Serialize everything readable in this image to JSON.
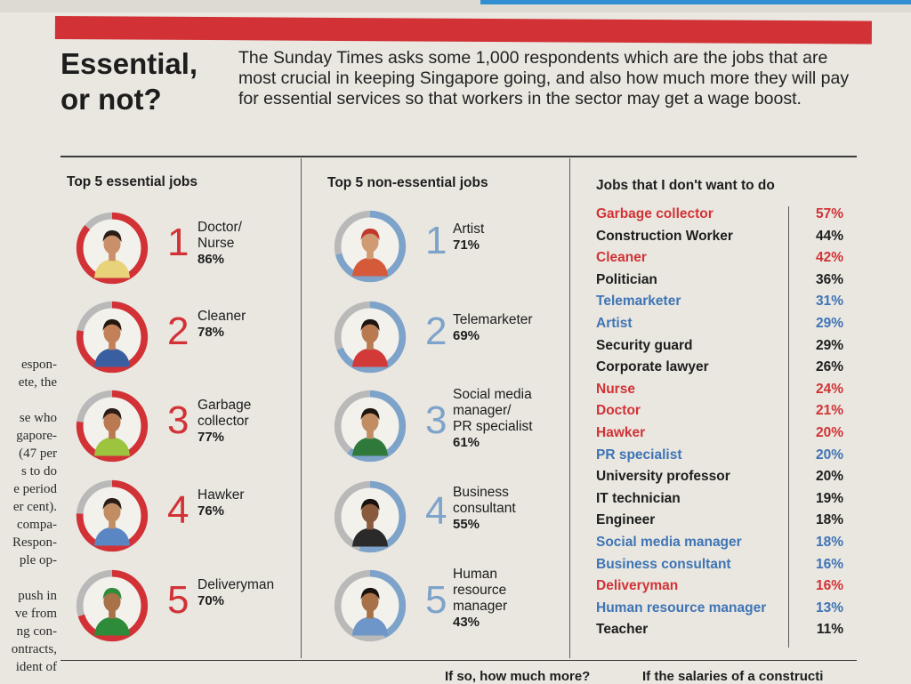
{
  "headline": {
    "line1": "Essential,",
    "line2": "or not?"
  },
  "intro": "The Sunday Times asks some 1,000 respondents which are the jobs that are most crucial in keeping Singapore going, and also how much more they will pay for essential services so that workers in the sector may get a wage boost.",
  "columns": {
    "essential_title": "Top 5 essential jobs",
    "nonessential_title": "Top 5 non-essential jobs",
    "dontwant_title": "Jobs that I don't want to do"
  },
  "essential": [
    {
      "rank": "1",
      "name": "Doctor/\nNurse",
      "pct": "86%",
      "value": 86
    },
    {
      "rank": "2",
      "name": "Cleaner",
      "pct": "78%",
      "value": 78
    },
    {
      "rank": "3",
      "name": "Garbage\ncollector",
      "pct": "77%",
      "value": 77
    },
    {
      "rank": "4",
      "name": "Hawker",
      "pct": "76%",
      "value": 76
    },
    {
      "rank": "5",
      "name": "Deliveryman",
      "pct": "70%",
      "value": 70
    }
  ],
  "nonessential": [
    {
      "rank": "1",
      "name": "Artist",
      "pct": "71%",
      "value": 71
    },
    {
      "rank": "2",
      "name": "Telemarketer",
      "pct": "69%",
      "value": 69
    },
    {
      "rank": "3",
      "name": "Social media\nmanager/\nPR specialist",
      "pct": "61%",
      "value": 61
    },
    {
      "rank": "4",
      "name": "Business\nconsultant",
      "pct": "55%",
      "value": 55
    },
    {
      "rank": "5",
      "name": "Human\nresource\nmanager",
      "pct": "43%",
      "value": 43
    }
  ],
  "dontwant": [
    {
      "name": "Garbage collector",
      "pct": "57%",
      "color": "red"
    },
    {
      "name": "Construction Worker",
      "pct": "44%",
      "color": "black"
    },
    {
      "name": "Cleaner",
      "pct": "42%",
      "color": "red"
    },
    {
      "name": "Politician",
      "pct": "36%",
      "color": "black"
    },
    {
      "name": "Telemarketer",
      "pct": "31%",
      "color": "blue"
    },
    {
      "name": "Artist",
      "pct": "29%",
      "color": "blue"
    },
    {
      "name": "Security guard",
      "pct": "29%",
      "color": "black"
    },
    {
      "name": "Corporate lawyer",
      "pct": "26%",
      "color": "black"
    },
    {
      "name": "Nurse",
      "pct": "24%",
      "color": "red"
    },
    {
      "name": "Doctor",
      "pct": "21%",
      "color": "red"
    },
    {
      "name": "Hawker",
      "pct": "20%",
      "color": "red"
    },
    {
      "name": "PR specialist",
      "pct": "20%",
      "color": "blue"
    },
    {
      "name": "University professor",
      "pct": "20%",
      "color": "black"
    },
    {
      "name": "IT technician",
      "pct": "19%",
      "color": "black"
    },
    {
      "name": "Engineer",
      "pct": "18%",
      "color": "black"
    },
    {
      "name": "Social media manager",
      "pct": "18%",
      "color": "blue"
    },
    {
      "name": "Business consultant",
      "pct": "16%",
      "color": "blue"
    },
    {
      "name": "Deliveryman",
      "pct": "16%",
      "color": "red"
    },
    {
      "name": "Human resource manager",
      "pct": "13%",
      "color": "blue"
    },
    {
      "name": "Teacher",
      "pct": "11%",
      "color": "black"
    }
  ],
  "side_text": [
    "espon-",
    "ete, the",
    "",
    "se who",
    "gapore-",
    "(47 per",
    "s to do",
    "e period",
    "er cent).",
    " compa-",
    "Respon-",
    "ple op-",
    "",
    " push in",
    "ve from",
    "ng con-",
    "ontracts,",
    "ident of"
  ],
  "bottom": {
    "left": "If so, how much more?",
    "right": "If the salaries of a constructi"
  },
  "colors": {
    "red": "#d23236",
    "blue": "#3f74b5",
    "ring_blue": "#7ea3cb",
    "ring_gray": "#b9b9b9"
  }
}
